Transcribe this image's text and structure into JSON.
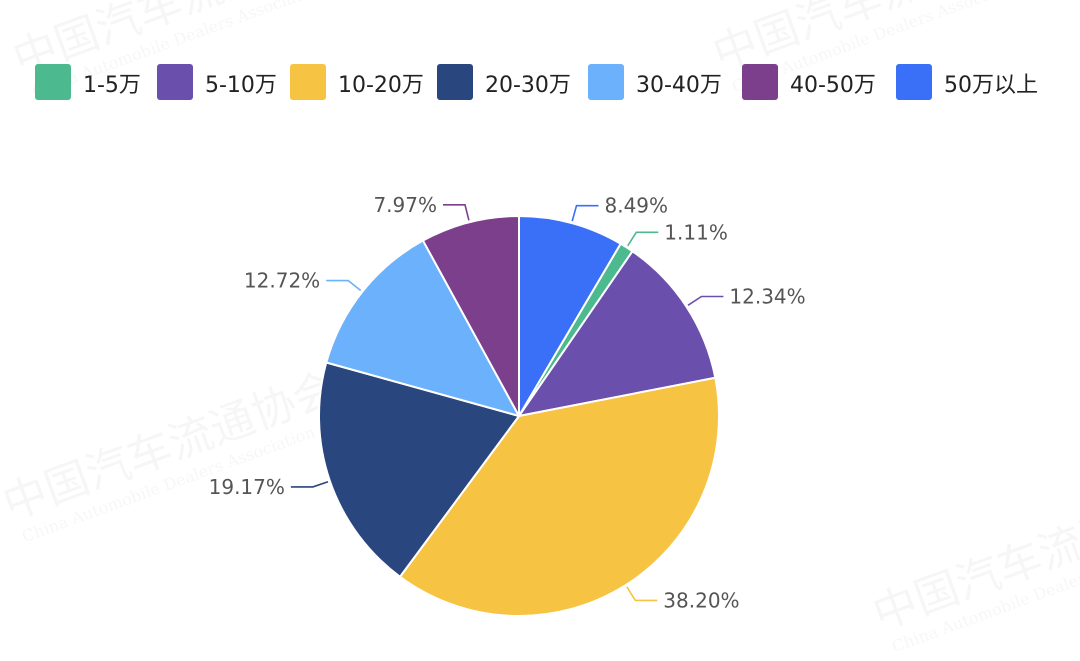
{
  "watermark": {
    "cn": "中国汽车流通协会",
    "en": "China Automobile Dealers Association"
  },
  "chart_data": {
    "type": "pie",
    "title": "",
    "categories": [
      "1-5万",
      "5-10万",
      "10-20万",
      "20-30万",
      "30-40万",
      "40-50万",
      "50万以上"
    ],
    "values": [
      1.11,
      12.34,
      38.2,
      19.17,
      12.72,
      7.97,
      8.49
    ],
    "labels": [
      "1.11%",
      "12.34%",
      "38.20%",
      "19.17%",
      "12.72%",
      "7.97%",
      "8.49%"
    ],
    "colors": [
      "#4cb98f",
      "#6a4fad",
      "#f6c342",
      "#29467f",
      "#6cb1fb",
      "#7b3f8b",
      "#3a6ff7"
    ],
    "legend_position": "top",
    "start_category": "50万以上",
    "direction": "clockwise"
  }
}
